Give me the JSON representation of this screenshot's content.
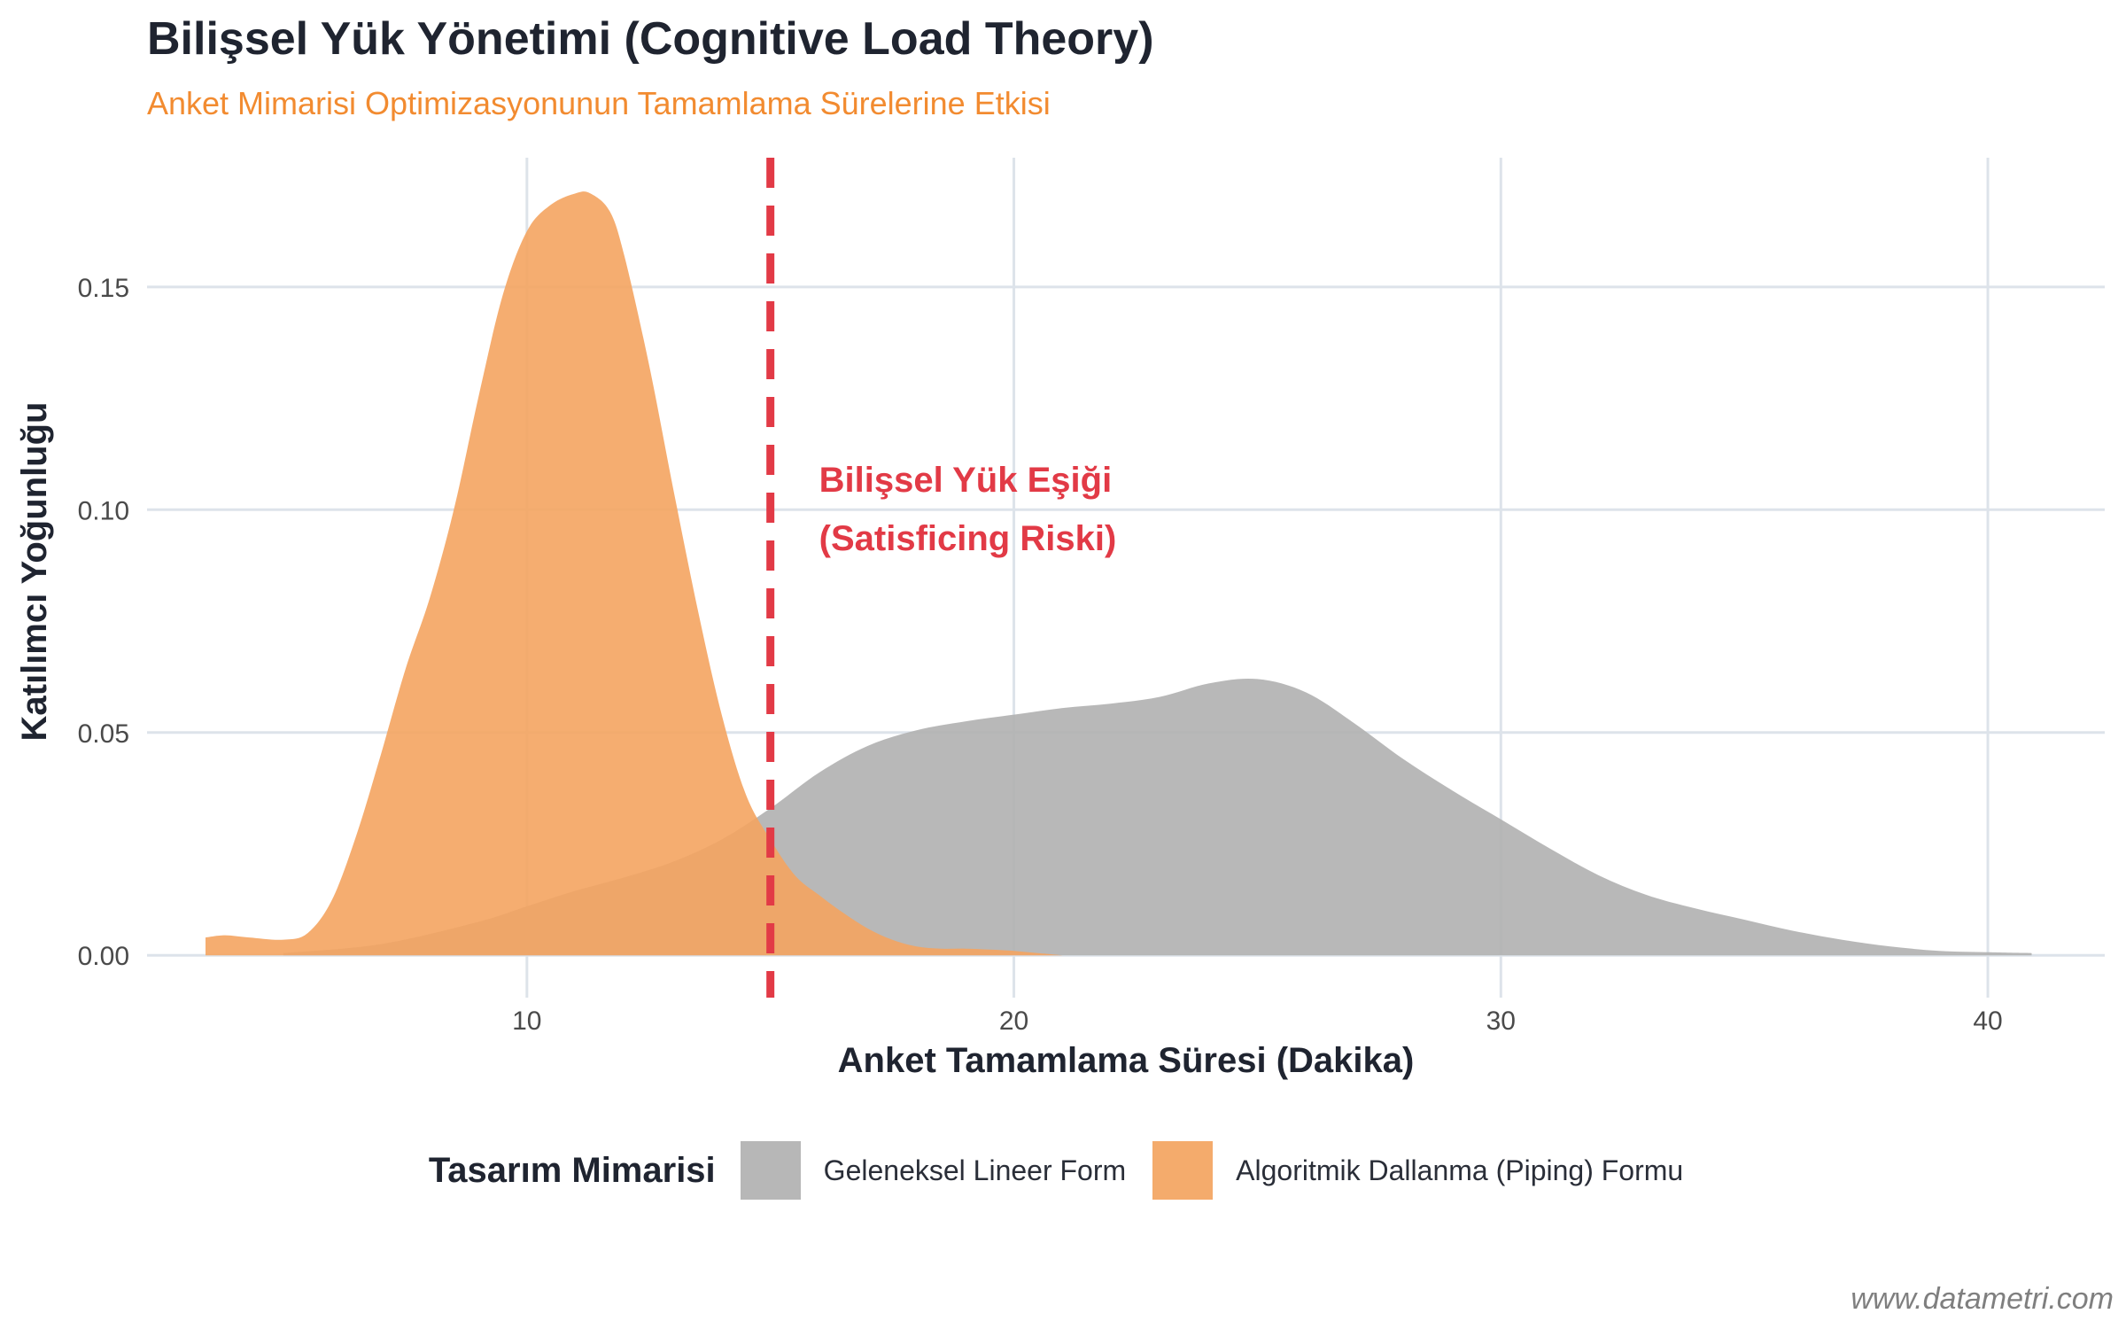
{
  "title": "Bilişsel Yük Yönetimi (Cognitive Load Theory)",
  "subtitle": "Anket Mimarisi Optimizasyonunun Tamamlama Sürelerine Etkisi",
  "caption": "www.datametri.com",
  "legend": {
    "title": "Tasarım Mimarisi",
    "items": [
      {
        "label": "Geleneksel Lineer Form",
        "color": "#b0b0b0"
      },
      {
        "label": "Algoritmik Dallanma (Piping) Formu",
        "color": "#f4a460"
      }
    ]
  },
  "chart_data": {
    "type": "area",
    "subtype": "density",
    "xlabel": "Anket Tamamlama Süresi (Dakika)",
    "ylabel": "Katılımcı Yoğunluğu",
    "xlim": [
      2.2,
      42.4
    ],
    "ylim": [
      -0.0095,
      0.179
    ],
    "x_ticks": [
      10,
      20,
      30,
      40
    ],
    "y_ticks": [
      0.0,
      0.05,
      0.1,
      0.15
    ],
    "y_tick_labels": [
      "0.00",
      "0.05",
      "0.10",
      "0.15"
    ],
    "grid": true,
    "legend_position": "bottom",
    "series": [
      {
        "name": "Geleneksel Lineer Form",
        "color": "#b0b0b0",
        "x": [
          5,
          7,
          9,
          10,
          11,
          12,
          13,
          14,
          15,
          16,
          17,
          18,
          19,
          20,
          21,
          22,
          23,
          24,
          25,
          26,
          27,
          28,
          29,
          30,
          31,
          32,
          33,
          34,
          35,
          36,
          37,
          38,
          39,
          40,
          40.9
        ],
        "y": [
          0.0005,
          0.0025,
          0.0075,
          0.011,
          0.0145,
          0.0175,
          0.021,
          0.026,
          0.033,
          0.041,
          0.047,
          0.0505,
          0.0525,
          0.054,
          0.0555,
          0.0565,
          0.058,
          0.061,
          0.062,
          0.059,
          0.052,
          0.044,
          0.037,
          0.0305,
          0.024,
          0.018,
          0.0135,
          0.0105,
          0.008,
          0.0055,
          0.0035,
          0.002,
          0.001,
          0.0007,
          0.0005
        ]
      },
      {
        "name": "Algoritmik Dallanma (Piping) Formu",
        "color": "#f4a460",
        "x": [
          3.4,
          3.8,
          4.3,
          5,
          5.5,
          6,
          6.5,
          7,
          7.5,
          8,
          8.5,
          9,
          9.5,
          10,
          10.5,
          11,
          11.3,
          11.7,
          12,
          12.5,
          13,
          13.5,
          14,
          14.5,
          15,
          15.5,
          16,
          16.5,
          17,
          17.5,
          18,
          18.5,
          19,
          19.5,
          20,
          20.5,
          21
        ],
        "y": [
          0.004,
          0.0045,
          0.004,
          0.0035,
          0.005,
          0.0125,
          0.027,
          0.045,
          0.064,
          0.08,
          0.1,
          0.125,
          0.148,
          0.1625,
          0.1685,
          0.171,
          0.171,
          0.167,
          0.157,
          0.133,
          0.105,
          0.078,
          0.054,
          0.036,
          0.026,
          0.018,
          0.0135,
          0.0095,
          0.006,
          0.0035,
          0.002,
          0.0015,
          0.0015,
          0.0013,
          0.001,
          0.0005,
          0.0
        ]
      }
    ],
    "annotations": [
      {
        "type": "vline",
        "x": 15,
        "color": "#e23a46",
        "style": "dashed"
      },
      {
        "type": "text",
        "x": 16,
        "y": 0.104,
        "lines": [
          "Bilişsel Yük Eşiği",
          "(Satisficing Riski)"
        ],
        "color": "#e23a46"
      }
    ]
  }
}
